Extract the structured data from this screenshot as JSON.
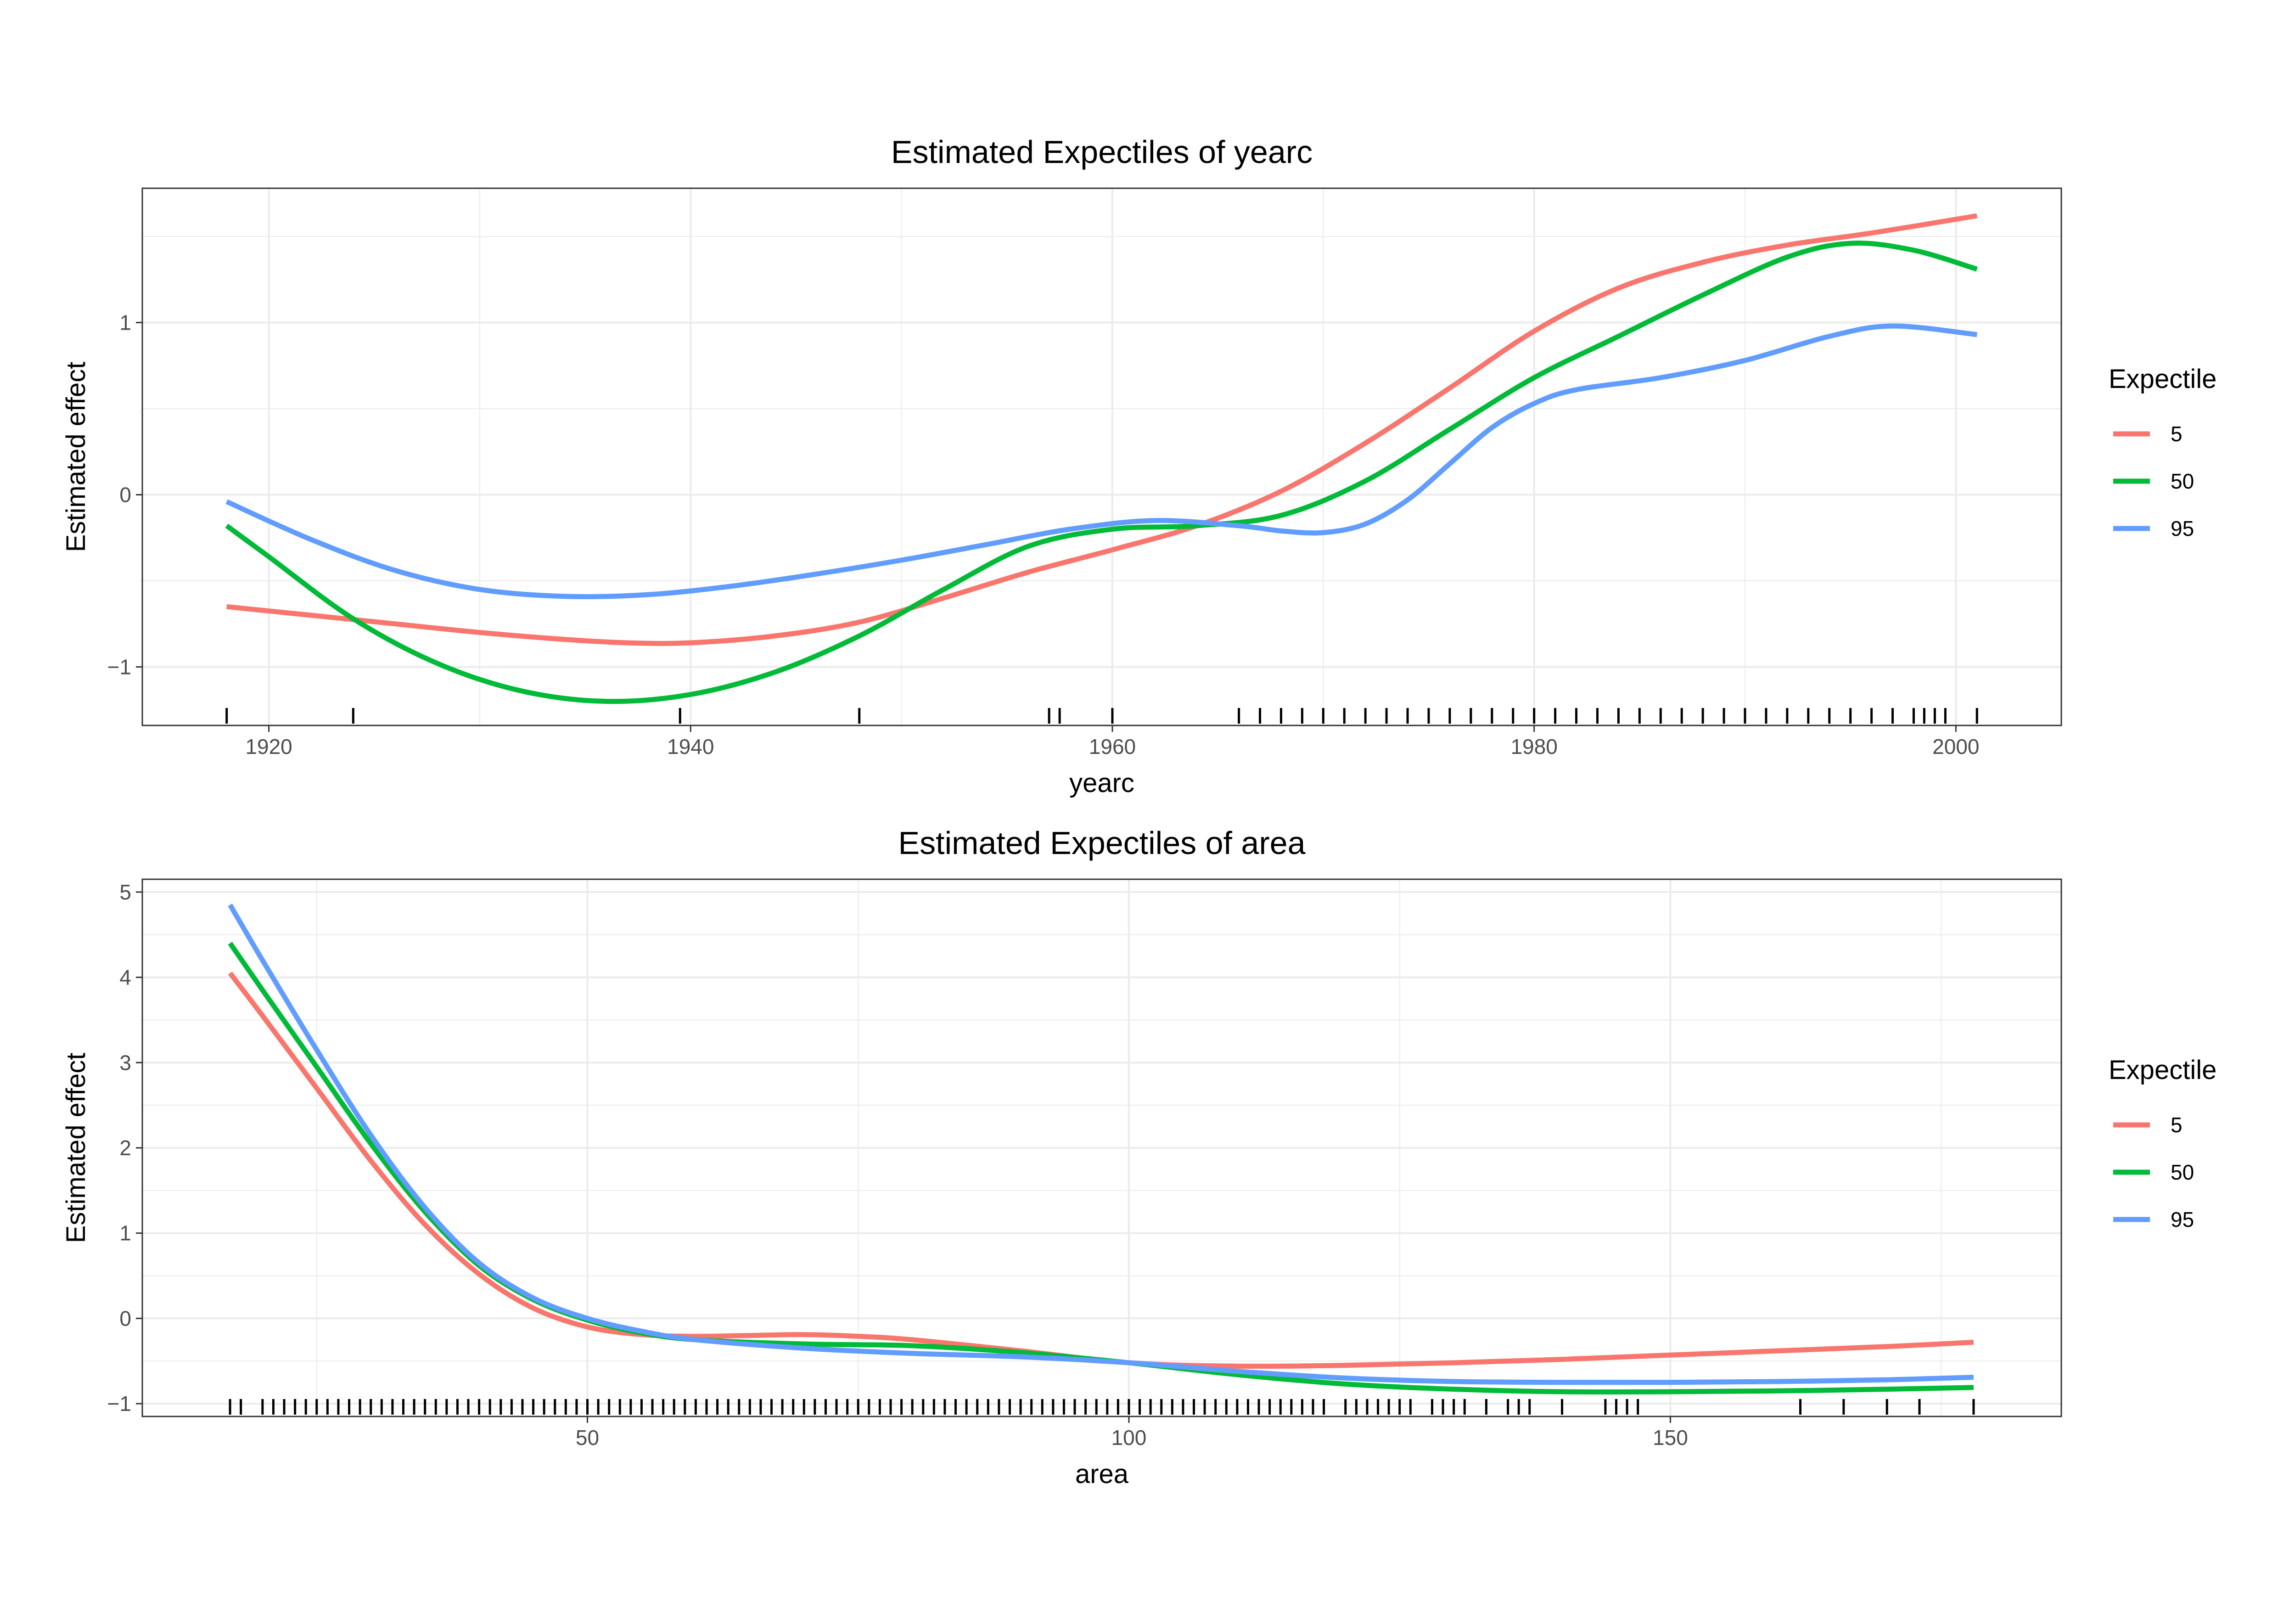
{
  "chart_data": [
    {
      "type": "line",
      "title": "Estimated Expectiles of yearc",
      "xlabel": "yearc",
      "ylabel": "Estimated effect",
      "xlim": [
        1914,
        2005
      ],
      "ylim": [
        -1.34,
        1.78
      ],
      "x_ticks": [
        1920,
        1940,
        1960,
        1980,
        2000
      ],
      "x_tick_labels": [
        "1920",
        "1940",
        "1960",
        "1980",
        "2000"
      ],
      "y_ticks": [
        -1,
        0,
        1
      ],
      "y_tick_labels": [
        "−1",
        "0",
        "1"
      ],
      "grid": true,
      "legend": {
        "title": "Expectile",
        "placement": "right"
      },
      "series": [
        {
          "name": "5",
          "color": "#F8766D",
          "x": [
            1918,
            1922,
            1926,
            1930,
            1934,
            1937,
            1940,
            1944,
            1948,
            1952,
            1956,
            1960,
            1964,
            1968,
            1972,
            1976,
            1980,
            1984,
            1988,
            1992,
            1996,
            2001
          ],
          "y": [
            -0.65,
            -0.7,
            -0.75,
            -0.8,
            -0.84,
            -0.86,
            -0.86,
            -0.82,
            -0.74,
            -0.6,
            -0.45,
            -0.32,
            -0.18,
            0.02,
            0.3,
            0.62,
            0.95,
            1.2,
            1.35,
            1.45,
            1.52,
            1.62
          ]
        },
        {
          "name": "50",
          "color": "#00BA38",
          "x": [
            1918,
            1920,
            1924,
            1928,
            1932,
            1936,
            1940,
            1944,
            1948,
            1952,
            1956,
            1960,
            1964,
            1968,
            1972,
            1976,
            1980,
            1984,
            1988,
            1992,
            1995,
            1998,
            2001
          ],
          "y": [
            -0.18,
            -0.36,
            -0.72,
            -0.98,
            -1.14,
            -1.2,
            -1.16,
            -1.03,
            -0.82,
            -0.55,
            -0.3,
            -0.2,
            -0.18,
            -0.12,
            0.08,
            0.38,
            0.68,
            0.92,
            1.16,
            1.38,
            1.46,
            1.42,
            1.31
          ]
        },
        {
          "name": "95",
          "color": "#619CFF",
          "x": [
            1918,
            1922,
            1926,
            1930,
            1934,
            1938,
            1942,
            1946,
            1950,
            1954,
            1958,
            1962,
            1966,
            1968,
            1970,
            1972,
            1974,
            1976,
            1978,
            1980,
            1982,
            1986,
            1990,
            1994,
            1997,
            2001
          ],
          "y": [
            -0.04,
            -0.26,
            -0.44,
            -0.55,
            -0.59,
            -0.58,
            -0.53,
            -0.46,
            -0.38,
            -0.29,
            -0.2,
            -0.15,
            -0.18,
            -0.21,
            -0.22,
            -0.17,
            -0.03,
            0.18,
            0.39,
            0.53,
            0.61,
            0.68,
            0.78,
            0.92,
            0.98,
            0.93
          ]
        }
      ],
      "rug_x": [
        1918,
        1924,
        1939.5,
        1948,
        1957,
        1957.5,
        1960,
        1966,
        1967,
        1968,
        1969,
        1970,
        1971,
        1972,
        1973,
        1974,
        1975,
        1976,
        1977,
        1978,
        1979,
        1980,
        1981,
        1982,
        1983,
        1984,
        1985,
        1986,
        1987,
        1988,
        1989,
        1990,
        1991,
        1992,
        1993,
        1994,
        1995,
        1996,
        1997,
        1998,
        1998.5,
        1999,
        1999.5,
        2001
      ]
    },
    {
      "type": "line",
      "title": "Estimated Expectiles of area",
      "xlabel": "area",
      "ylabel": "Estimated effect",
      "xlim": [
        8.9,
        186.1
      ],
      "ylim": [
        -1.15,
        5.15
      ],
      "x_ticks": [
        50,
        100,
        150
      ],
      "x_tick_labels": [
        "50",
        "100",
        "150"
      ],
      "y_ticks": [
        -1,
        0,
        1,
        2,
        3,
        4,
        5
      ],
      "y_tick_labels": [
        "−1",
        "0",
        "1",
        "2",
        "3",
        "4",
        "5"
      ],
      "grid": true,
      "legend": {
        "title": "Expectile",
        "placement": "right"
      },
      "series": [
        {
          "name": "5",
          "color": "#F8766D",
          "x": [
            17,
            20,
            25,
            30,
            35,
            40,
            45,
            50,
            55,
            60,
            65,
            70,
            75,
            80,
            90,
            100,
            110,
            120,
            130,
            140,
            150,
            160,
            170,
            178
          ],
          "y": [
            4.05,
            3.55,
            2.7,
            1.85,
            1.1,
            0.52,
            0.12,
            -0.1,
            -0.19,
            -0.21,
            -0.2,
            -0.19,
            -0.21,
            -0.25,
            -0.38,
            -0.52,
            -0.56,
            -0.55,
            -0.52,
            -0.48,
            -0.43,
            -0.38,
            -0.33,
            -0.28
          ]
        },
        {
          "name": "50",
          "color": "#00BA38",
          "x": [
            17,
            20,
            25,
            30,
            35,
            40,
            45,
            50,
            55,
            60,
            70,
            80,
            90,
            100,
            110,
            120,
            130,
            140,
            150,
            160,
            170,
            178
          ],
          "y": [
            4.4,
            3.85,
            2.95,
            2.05,
            1.25,
            0.62,
            0.22,
            -0.02,
            -0.17,
            -0.25,
            -0.3,
            -0.32,
            -0.4,
            -0.52,
            -0.66,
            -0.77,
            -0.83,
            -0.86,
            -0.86,
            -0.85,
            -0.83,
            -0.81
          ]
        },
        {
          "name": "95",
          "color": "#619CFF",
          "x": [
            17,
            20,
            25,
            30,
            35,
            40,
            45,
            50,
            55,
            60,
            70,
            80,
            90,
            100,
            110,
            120,
            130,
            140,
            150,
            160,
            170,
            178
          ],
          "y": [
            4.85,
            4.2,
            3.15,
            2.15,
            1.3,
            0.65,
            0.24,
            0.0,
            -0.15,
            -0.25,
            -0.35,
            -0.41,
            -0.45,
            -0.52,
            -0.62,
            -0.7,
            -0.74,
            -0.75,
            -0.75,
            -0.74,
            -0.72,
            -0.69
          ]
        }
      ],
      "rug_x": [
        17,
        18,
        20,
        21,
        22,
        23,
        24,
        25,
        26,
        27,
        28,
        29,
        30,
        31,
        32,
        33,
        34,
        35,
        36,
        37,
        38,
        39,
        40,
        41,
        42,
        43,
        44,
        45,
        46,
        47,
        48,
        49,
        50,
        51,
        52,
        53,
        54,
        55,
        56,
        57,
        58,
        59,
        60,
        61,
        62,
        63,
        64,
        65,
        66,
        67,
        68,
        69,
        70,
        71,
        72,
        73,
        74,
        75,
        76,
        77,
        78,
        79,
        80,
        81,
        82,
        83,
        84,
        85,
        86,
        87,
        88,
        89,
        90,
        91,
        92,
        93,
        94,
        95,
        96,
        97,
        98,
        99,
        100,
        101,
        102,
        103,
        104,
        105,
        106,
        107,
        108,
        109,
        110,
        111,
        112,
        113,
        114,
        115,
        116,
        117,
        118,
        120,
        121,
        122,
        123,
        124,
        125,
        126,
        128,
        129,
        130,
        131,
        133,
        135,
        136,
        137,
        140,
        144,
        145,
        146,
        147,
        162,
        166,
        170,
        173,
        178
      ]
    }
  ]
}
